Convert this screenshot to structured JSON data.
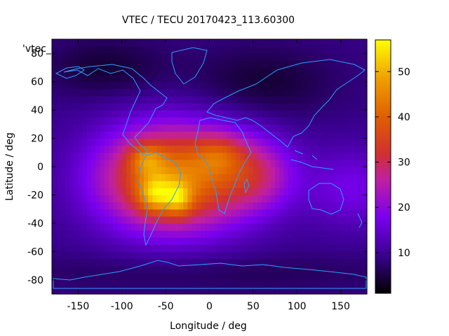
{
  "chart_data": {
    "type": "heatmap",
    "title": "VTEC / TECU 20170423_113.60300",
    "xlabel": "Longitude / deg",
    "ylabel": "Latitude / deg",
    "key_label": "'vtec_",
    "xlim": [
      -180,
      180
    ],
    "ylim": [
      -90,
      90
    ],
    "x_ticks": [
      -150,
      -100,
      -50,
      0,
      50,
      100,
      150
    ],
    "y_ticks": [
      -80,
      -60,
      -40,
      -20,
      0,
      20,
      40,
      60,
      80
    ],
    "colorbar": {
      "min": 1,
      "max": 57,
      "ticks": [
        10,
        20,
        30,
        40,
        50
      ]
    },
    "grid_step_deg": 5,
    "background_vtec": 9,
    "features": [
      {
        "name": "south-america-peak",
        "lon": -65,
        "lat": -20,
        "vtec": 50
      },
      {
        "name": "brazil-peak",
        "lon": -38,
        "lat": -22,
        "vtec": 53
      },
      {
        "name": "central-america-peak",
        "lon": -70,
        "lat": 5,
        "vtec": 46
      },
      {
        "name": "africa-peak",
        "lon": 10,
        "lat": 8,
        "vtec": 45
      },
      {
        "name": "atlantic-band",
        "lon": -20,
        "lat": 0,
        "vtec": 40
      },
      {
        "name": "indian-ocean-band",
        "lon": 55,
        "lat": -5,
        "vtec": 24
      },
      {
        "name": "pacific-band",
        "lon": 170,
        "lat": -15,
        "vtec": 17
      }
    ]
  }
}
